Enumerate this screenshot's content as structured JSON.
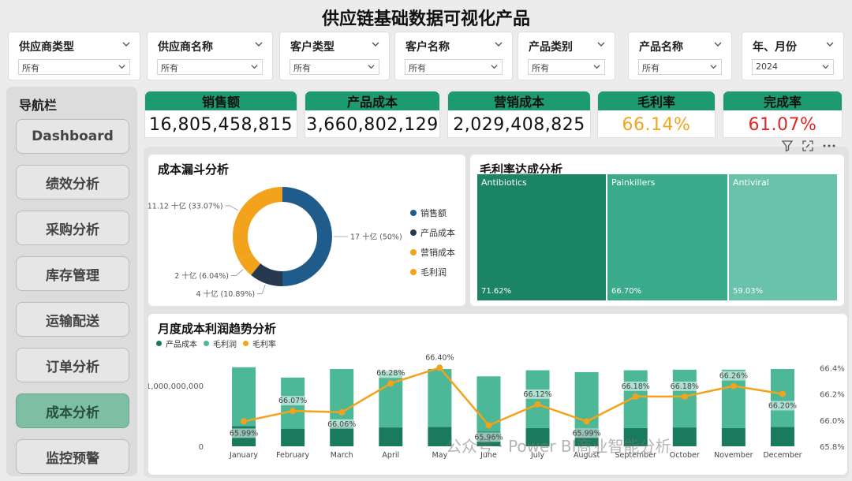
{
  "title": "供应链基础数据可视化产品",
  "slicers": [
    {
      "label": "供应商类型",
      "value": "所有"
    },
    {
      "label": "供应商名称",
      "value": "所有"
    },
    {
      "label": "客户类型",
      "value": "所有"
    },
    {
      "label": "客户名称",
      "value": "所有"
    },
    {
      "label": "产品类别",
      "value": "所有"
    },
    {
      "label": "产品名称",
      "value": "所有"
    },
    {
      "label": "年、月份",
      "value": "2024"
    }
  ],
  "nav": {
    "title": "导航栏",
    "items": [
      {
        "label": "Dashboard",
        "active": false
      },
      {
        "label": "绩效分析",
        "active": false
      },
      {
        "label": "采购分析",
        "active": false
      },
      {
        "label": "库存管理",
        "active": false
      },
      {
        "label": "运输配送",
        "active": false
      },
      {
        "label": "订单分析",
        "active": false
      },
      {
        "label": "成本分析",
        "active": true
      },
      {
        "label": "监控预警",
        "active": false
      }
    ]
  },
  "kpis": [
    {
      "label": "销售额",
      "value": "16,805,458,815",
      "color": "#111111"
    },
    {
      "label": "产品成本",
      "value": "3,660,802,129",
      "color": "#111111"
    },
    {
      "label": "营销成本",
      "value": "2,029,408,825",
      "color": "#111111"
    },
    {
      "label": "毛利率",
      "value": "66.14%",
      "color": "#f2a61c"
    },
    {
      "label": "完成率",
      "value": "61.07%",
      "color": "#e0262b"
    }
  ],
  "donut": {
    "title": "成本漏斗分析",
    "slices": [
      {
        "name": "销售额",
        "value": 17,
        "pct": 50,
        "color": "#1f5c8b",
        "label": "17 十亿 (50%)"
      },
      {
        "name": "产品成本",
        "value": 4,
        "pct": 10.89,
        "color": "#26384f",
        "label": "4 十亿 (10.89%)"
      },
      {
        "name": "营销成本",
        "value": 2,
        "pct": 6.04,
        "color": "#f3a21c",
        "label": "2 十亿 (6.04%)"
      },
      {
        "name": "毛利润",
        "value": 11.12,
        "pct": 33.07,
        "color": "#f2a31b",
        "label": "11.12 十亿 (33.07%)"
      }
    ],
    "legend": [
      "销售额",
      "产品成本",
      "营销成本",
      "毛利润"
    ]
  },
  "treemap": {
    "title": "毛利率达成分析",
    "cells": [
      {
        "label": "Antibiotics",
        "value": "71.62%",
        "color": "#1a8465"
      },
      {
        "label": "Painkillers",
        "value": "66.70%",
        "color": "#3aab8a"
      },
      {
        "label": "Antiviral",
        "value": "59.03%",
        "color": "#6ac2aa"
      }
    ]
  },
  "combo": {
    "title": "月度成本利润趋势分析",
    "legend": [
      {
        "name": "产品成本",
        "color": "#1a7a5e"
      },
      {
        "name": "毛利润",
        "color": "#4db897"
      },
      {
        "name": "毛利率",
        "color": "#f2a21b"
      }
    ],
    "y_left_ticks": [
      "1,000,000,000",
      "0"
    ],
    "y_right_ticks": [
      "66.4%",
      "66.2%",
      "66.0%",
      "65.8%"
    ]
  },
  "chart_data": {
    "type": "bar",
    "title": "月度成本利润趋势分析",
    "categories": [
      "January",
      "February",
      "March",
      "April",
      "May",
      "June",
      "July",
      "August",
      "September",
      "October",
      "November",
      "December"
    ],
    "series": [
      {
        "name": "产品成本",
        "type": "bar",
        "values": [
          330000000,
          290000000,
          320000000,
          310000000,
          320000000,
          240000000,
          300000000,
          290000000,
          300000000,
          310000000,
          300000000,
          320000000
        ]
      },
      {
        "name": "毛利润",
        "type": "bar",
        "values": [
          970000000,
          840000000,
          950000000,
          930000000,
          950000000,
          910000000,
          950000000,
          930000000,
          950000000,
          950000000,
          960000000,
          950000000
        ]
      },
      {
        "name": "毛利率",
        "type": "line",
        "axis": "right",
        "values": [
          65.99,
          66.07,
          66.06,
          66.28,
          66.4,
          65.96,
          66.12,
          65.99,
          66.18,
          66.18,
          66.26,
          66.2
        ],
        "labels": [
          "65.99%",
          "66.07%",
          "66.06%",
          "66.28%",
          "66.40%",
          "65.96%",
          "66.12%",
          "65.99%",
          "66.18%",
          "66.18%",
          "66.26%",
          "66.20%"
        ]
      }
    ],
    "ylim_left": [
      0,
      1400000000
    ],
    "ylim_right": [
      65.8,
      66.45
    ]
  },
  "watermark": "公众号 · Power BI商业智能分析"
}
